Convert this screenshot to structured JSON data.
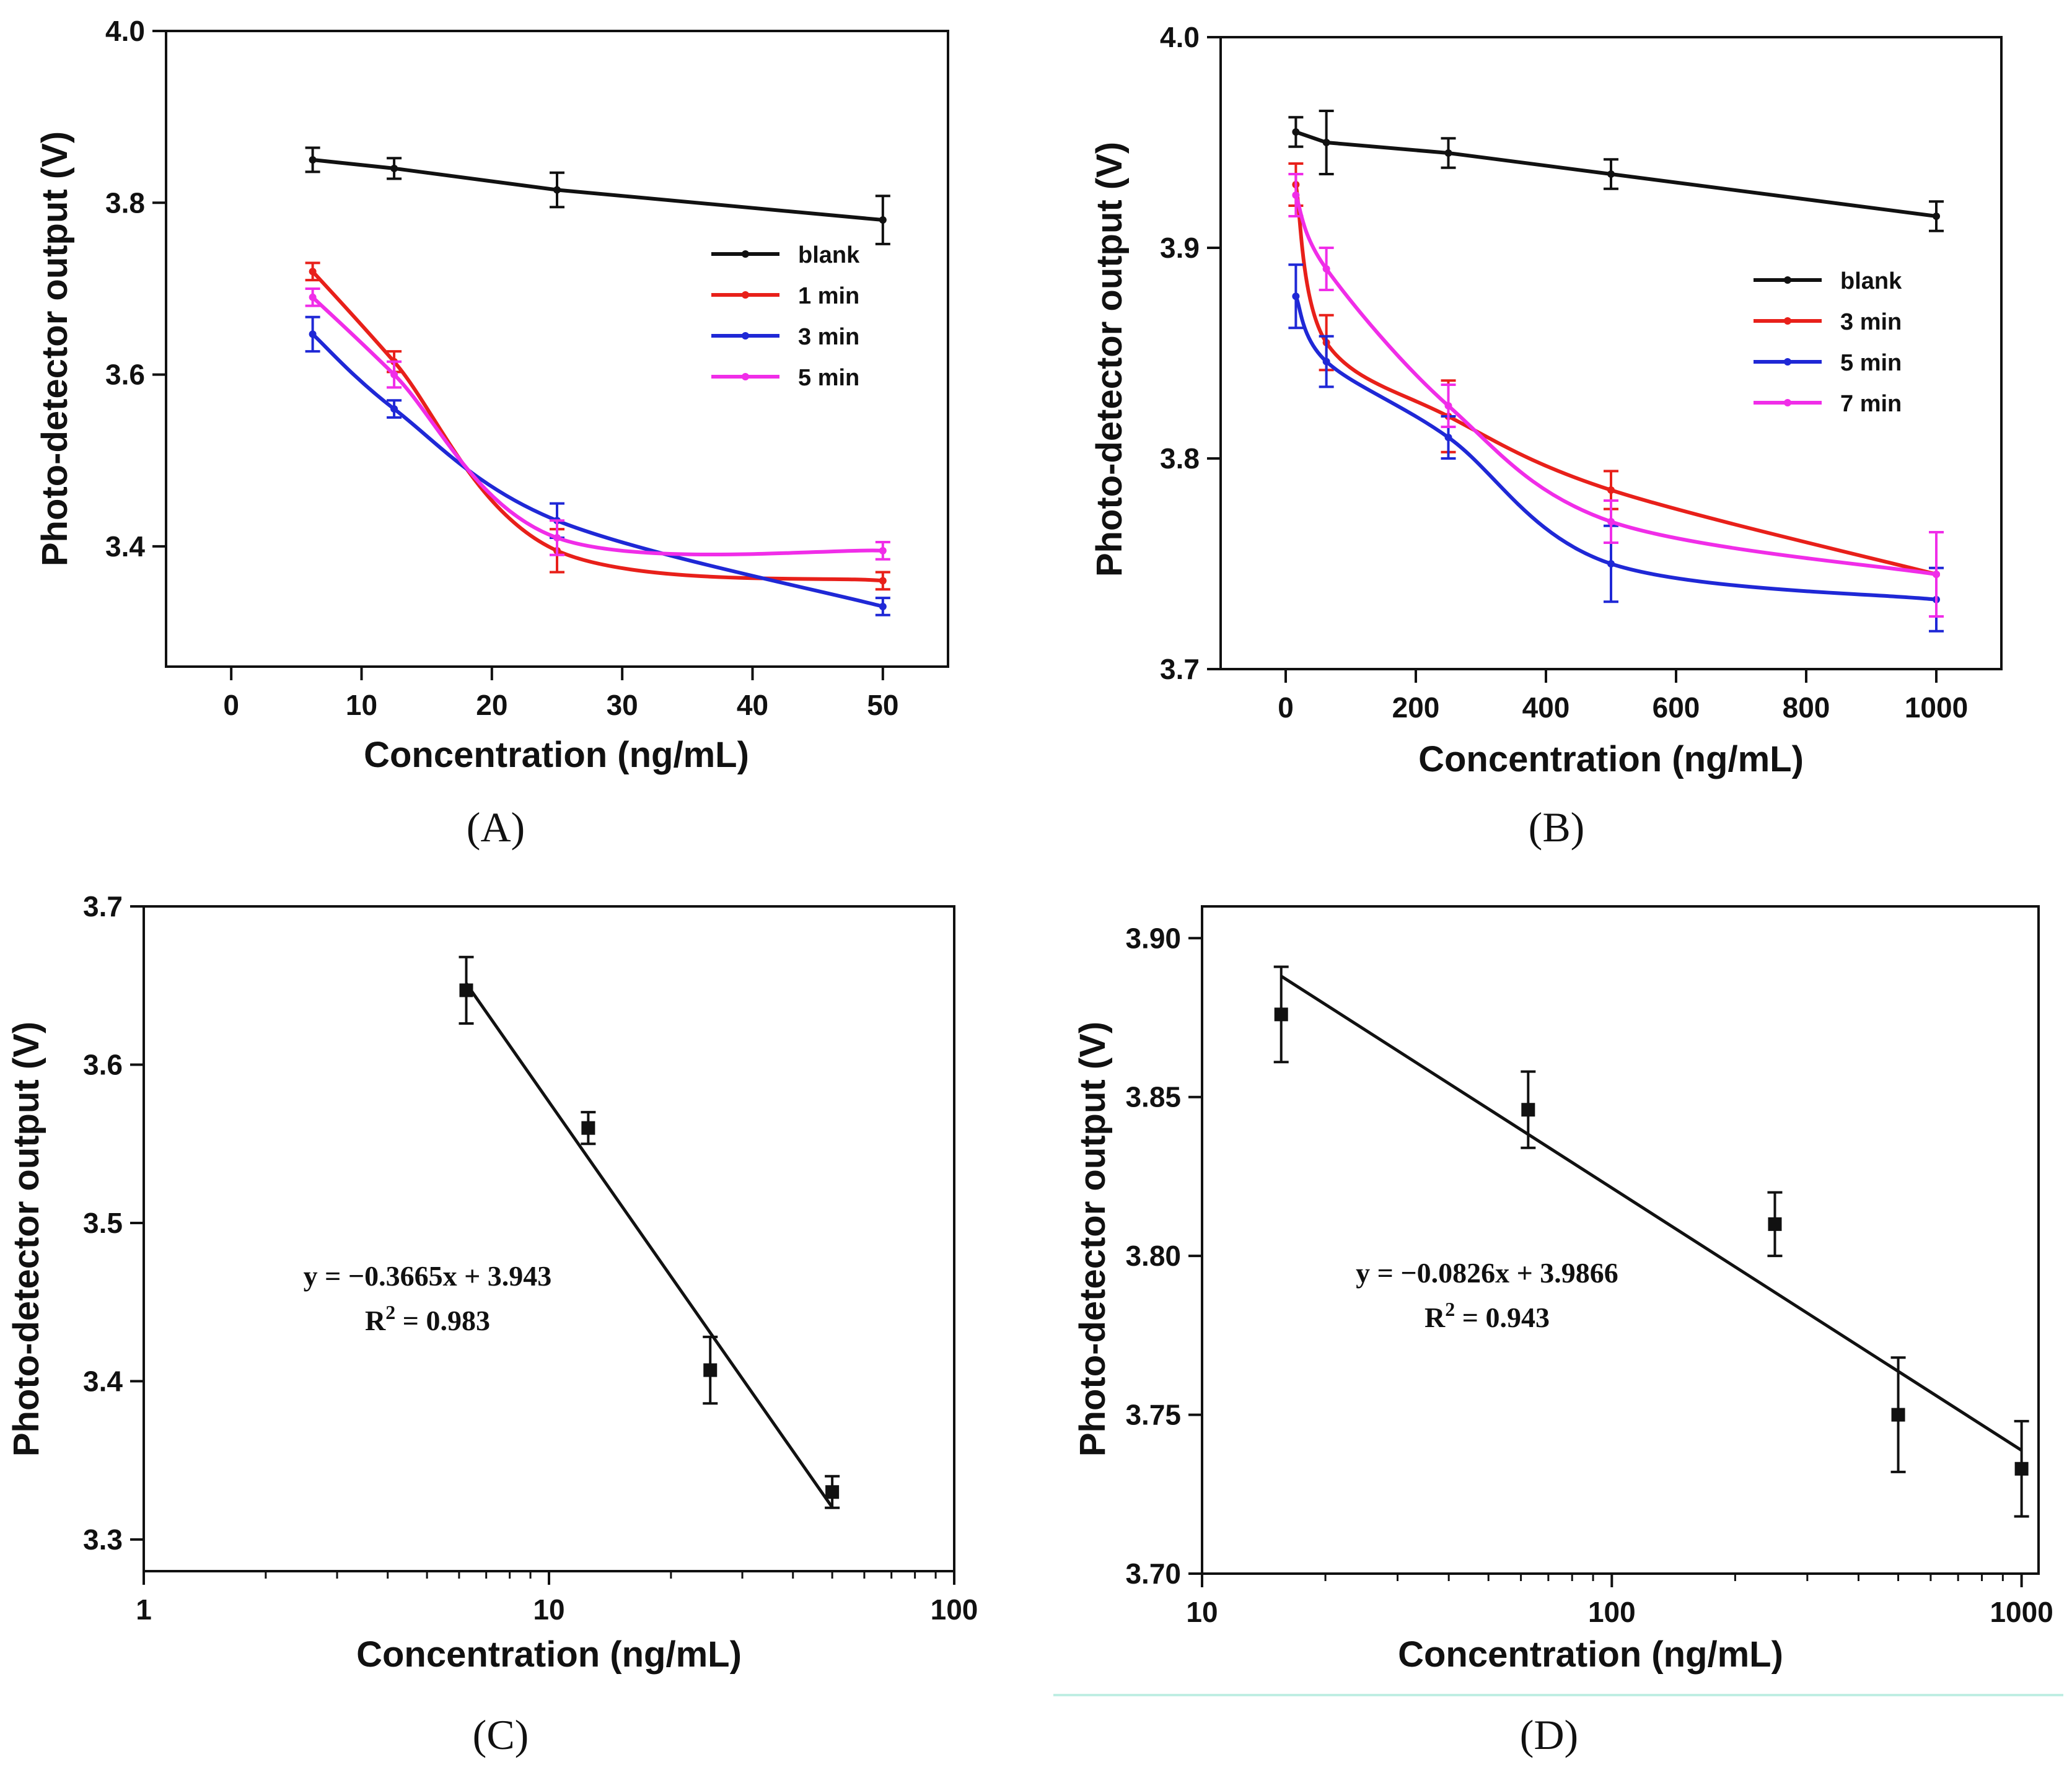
{
  "chart_data": [
    {
      "panel": "A",
      "caption": "(A)",
      "type": "line",
      "xlabel": "Concentration (ng/mL)",
      "ylabel": "Photo-detector output (V)",
      "xlim": [
        -5,
        55
      ],
      "ylim": [
        3.26,
        4.0
      ],
      "x_scale": "linear",
      "xticks": [
        0,
        10,
        20,
        30,
        40,
        50
      ],
      "yticks": [
        3.4,
        3.6,
        3.8,
        4.0
      ],
      "xtick_labels": [
        "0",
        "10",
        "20",
        "30",
        "40",
        "50"
      ],
      "ytick_labels": [
        "3.4",
        "3.6",
        "3.8",
        "4.0"
      ],
      "legend_position": "right",
      "grid": false,
      "series": [
        {
          "name": "blank",
          "color": "#111111",
          "fit": "line",
          "x": [
            6.25,
            12.5,
            25,
            50
          ],
          "y": [
            3.85,
            3.84,
            3.815,
            3.78
          ],
          "err": [
            0.014,
            0.012,
            0.02,
            0.028
          ]
        },
        {
          "name": "1 min",
          "color": "#e8201a",
          "fit": "smooth",
          "x": [
            6.25,
            12.5,
            25,
            50
          ],
          "y": [
            3.72,
            3.615,
            3.395,
            3.36
          ],
          "err": [
            0.01,
            0.012,
            0.025,
            0.01
          ]
        },
        {
          "name": "3 min",
          "color": "#1f28d6",
          "fit": "smooth",
          "x": [
            6.25,
            12.5,
            25,
            50
          ],
          "y": [
            3.647,
            3.56,
            3.43,
            3.33
          ],
          "err": [
            0.02,
            0.01,
            0.02,
            0.01
          ]
        },
        {
          "name": "5 min",
          "color": "#f02de8",
          "fit": "smooth",
          "x": [
            6.25,
            12.5,
            25,
            50
          ],
          "y": [
            3.69,
            3.6,
            3.41,
            3.395
          ],
          "err": [
            0.01,
            0.015,
            0.02,
            0.01
          ]
        }
      ]
    },
    {
      "panel": "B",
      "caption": "(B)",
      "type": "line",
      "xlabel": "Concentration (ng/mL)",
      "ylabel": "Photo-detector output (V)",
      "xlim": [
        -100,
        1100
      ],
      "ylim": [
        3.7,
        4.0
      ],
      "x_scale": "linear",
      "xticks": [
        0,
        200,
        400,
        600,
        800,
        1000
      ],
      "yticks": [
        3.7,
        3.8,
        3.9,
        4.0
      ],
      "xtick_labels": [
        "0",
        "200",
        "400",
        "600",
        "800",
        "1000"
      ],
      "ytick_labels": [
        "3.7",
        "3.8",
        "3.9",
        "4.0"
      ],
      "legend_position": "right",
      "grid": false,
      "series": [
        {
          "name": "blank",
          "color": "#111111",
          "fit": "line",
          "x": [
            15.6,
            62.5,
            250,
            500,
            1000
          ],
          "y": [
            3.955,
            3.95,
            3.945,
            3.935,
            3.915
          ],
          "err": [
            0.007,
            0.015,
            0.007,
            0.007,
            0.007
          ]
        },
        {
          "name": "3 min",
          "color": "#e8201a",
          "fit": "smooth",
          "x": [
            15.6,
            62.5,
            250,
            500,
            1000
          ],
          "y": [
            3.93,
            3.855,
            3.82,
            3.785,
            3.745
          ],
          "err": [
            0.01,
            0.013,
            0.017,
            0.009,
            0.02
          ]
        },
        {
          "name": "5 min",
          "color": "#1f28d6",
          "fit": "smooth",
          "x": [
            15.6,
            62.5,
            250,
            500,
            1000
          ],
          "y": [
            3.877,
            3.846,
            3.81,
            3.75,
            3.733
          ],
          "err": [
            0.015,
            0.012,
            0.01,
            0.018,
            0.015
          ]
        },
        {
          "name": "7 min",
          "color": "#f02de8",
          "fit": "smooth",
          "x": [
            15.6,
            62.5,
            250,
            500,
            1000
          ],
          "y": [
            3.925,
            3.89,
            3.825,
            3.77,
            3.745
          ],
          "err": [
            0.01,
            0.01,
            0.01,
            0.01,
            0.02
          ]
        }
      ]
    },
    {
      "panel": "C",
      "caption": "(C)",
      "type": "scatter",
      "xlabel": "Concentration (ng/mL)",
      "ylabel": "Photo-detector output (V)",
      "xlim": [
        1,
        100
      ],
      "ylim": [
        3.28,
        3.7
      ],
      "x_scale": "log",
      "xticks": [
        1,
        10,
        100
      ],
      "yticks": [
        3.3,
        3.4,
        3.5,
        3.6,
        3.7
      ],
      "xtick_labels": [
        "1",
        "10",
        "100"
      ],
      "ytick_labels": [
        "3.3",
        "3.4",
        "3.5",
        "3.6",
        "3.7"
      ],
      "grid": false,
      "series": [
        {
          "name": "",
          "color": "#111111",
          "x": [
            6.25,
            12.5,
            25,
            50
          ],
          "y": [
            3.647,
            3.56,
            3.407,
            3.33
          ],
          "err": [
            0.021,
            0.01,
            0.021,
            0.01
          ]
        }
      ],
      "fit": {
        "slope": -0.3665,
        "intercept": 3.943,
        "x_range": [
          6.25,
          50
        ]
      },
      "annotation": {
        "equation": "y = −0.3665x + 3.943",
        "r2_prefix": "R",
        "r2_suffix": " = 0.983",
        "r2_sup": "2"
      }
    },
    {
      "panel": "D",
      "caption": "(D)",
      "type": "scatter",
      "xlabel": "Concentration (ng/mL)",
      "ylabel": "Photo-detector output (V)",
      "xlim": [
        10,
        1100
      ],
      "ylim": [
        3.7,
        3.91
      ],
      "x_scale": "log",
      "xticks": [
        10,
        100,
        1000
      ],
      "yticks": [
        3.7,
        3.75,
        3.8,
        3.85,
        3.9
      ],
      "xtick_labels": [
        "10",
        "100",
        "1000"
      ],
      "ytick_labels": [
        "3.70",
        "3.75",
        "3.80",
        "3.85",
        "3.90"
      ],
      "grid": false,
      "series": [
        {
          "name": "",
          "color": "#111111",
          "x": [
            15.6,
            62.5,
            250,
            500,
            1000
          ],
          "y": [
            3.876,
            3.846,
            3.81,
            3.75,
            3.733
          ],
          "err": [
            0.015,
            0.012,
            0.01,
            0.018,
            0.015
          ]
        }
      ],
      "fit": {
        "slope": -0.0826,
        "intercept": 3.9866,
        "x_range": [
          15.6,
          1000
        ]
      },
      "annotation": {
        "equation": "y = −0.0826x + 3.9866",
        "r2_prefix": "R",
        "r2_suffix": " = 0.943",
        "r2_sup": "2"
      }
    }
  ]
}
